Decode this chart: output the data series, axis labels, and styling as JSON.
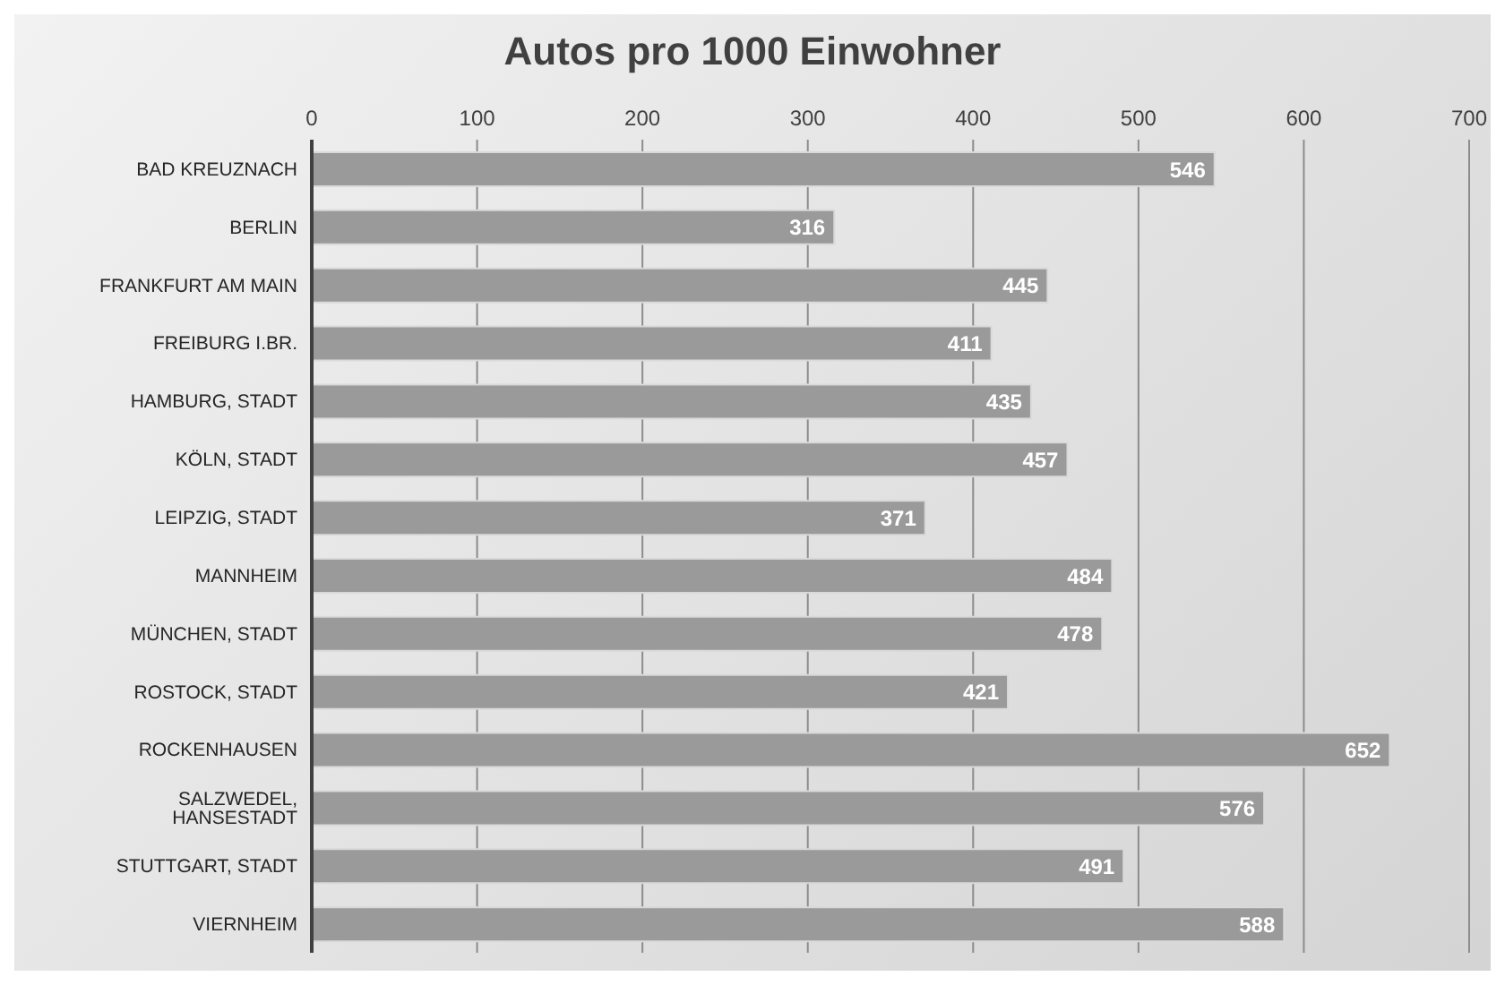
{
  "chart_data": {
    "type": "bar",
    "orientation": "horizontal",
    "title": "Autos pro 1000 Einwohner",
    "categories": [
      "BAD KREUZNACH",
      "BERLIN",
      "FRANKFURT AM MAIN",
      "FREIBURG I.BR.",
      "HAMBURG, STADT",
      "KÖLN, STADT",
      "LEIPZIG, STADT",
      "MANNHEIM",
      "MÜNCHEN, STADT",
      "ROSTOCK, STADT",
      "ROCKENHAUSEN",
      "SALZWEDEL, HANSESTADT",
      "STUTTGART, STADT",
      "VIERNHEIM"
    ],
    "values": [
      546,
      316,
      445,
      411,
      435,
      457,
      371,
      484,
      478,
      421,
      652,
      576,
      491,
      588
    ],
    "color": "#9a9a9a",
    "xlim": [
      0,
      700
    ],
    "xticks": [
      0,
      100,
      200,
      300,
      400,
      500,
      600,
      700
    ],
    "grid": "x",
    "data_labels": true
  }
}
